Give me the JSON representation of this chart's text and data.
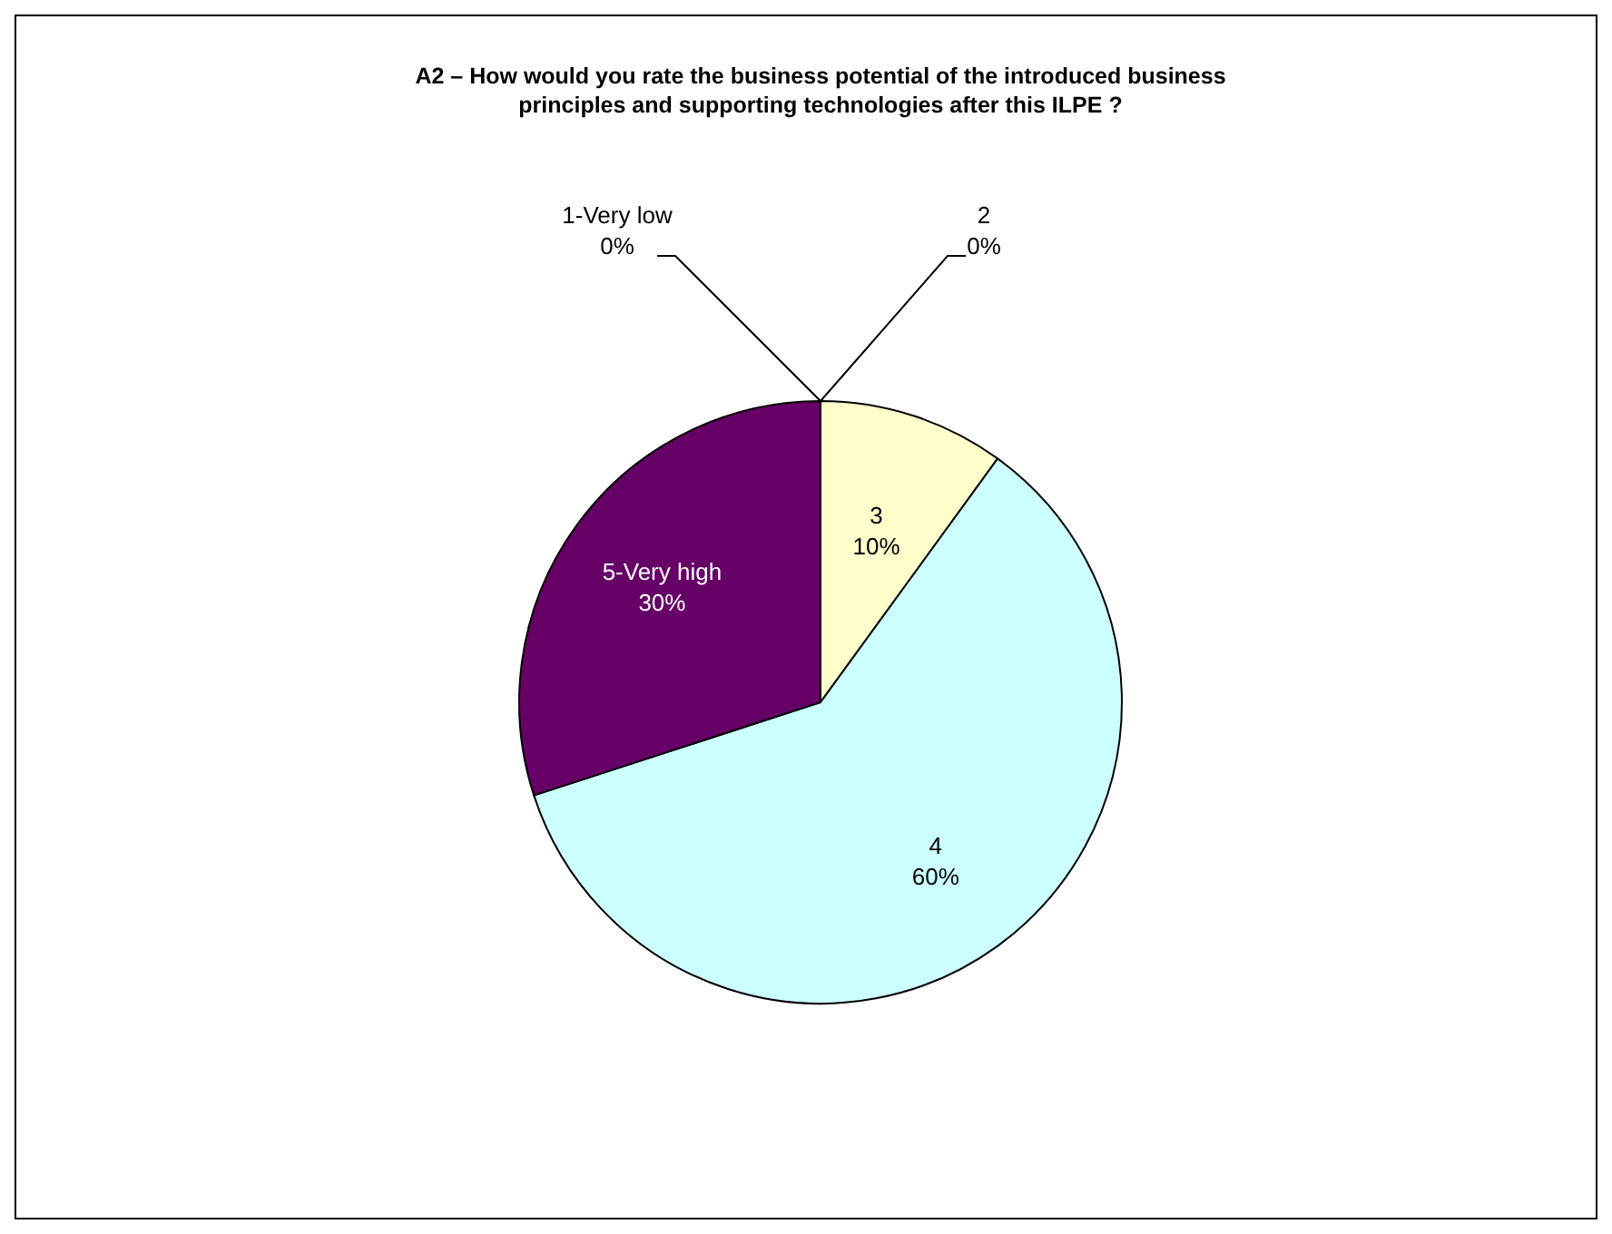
{
  "chart_data": {
    "type": "pie",
    "title": "A2 – How would you rate the business potential of the introduced business principles and supporting technologies after this ILPE ?",
    "categories": [
      "1-Very low",
      "2",
      "3",
      "4",
      "5-Very high"
    ],
    "values": [
      0,
      0,
      10,
      60,
      30
    ],
    "value_labels": [
      "0%",
      "0%",
      "10%",
      "60%",
      "30%"
    ],
    "colors": [
      "#9999ff",
      "#993366",
      "#ffffcc",
      "#ccffff",
      "#660066"
    ]
  }
}
